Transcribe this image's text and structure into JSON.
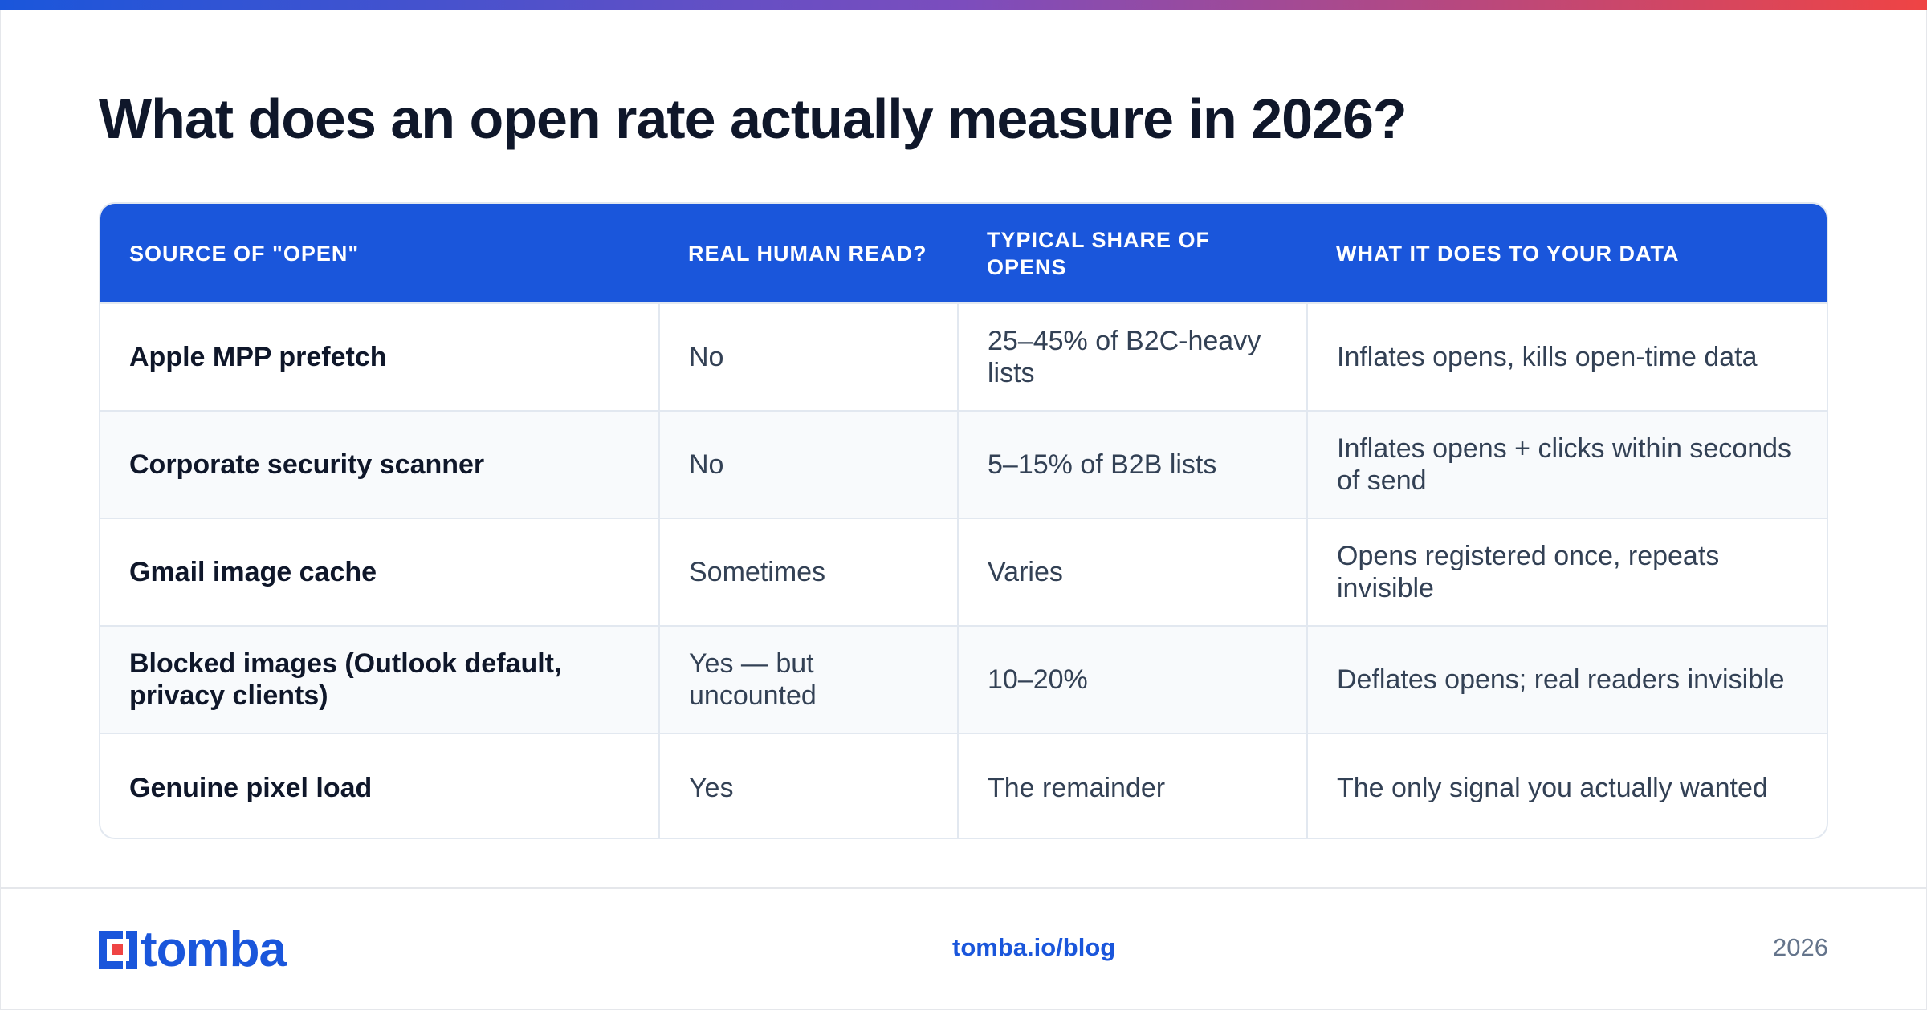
{
  "title": "What does an open rate actually measure in 2026?",
  "table": {
    "headers": [
      "SOURCE OF \"OPEN\"",
      "REAL HUMAN READ?",
      "TYPICAL SHARE OF OPENS",
      "WHAT IT DOES TO YOUR DATA"
    ],
    "rows": [
      [
        "Apple MPP prefetch",
        "No",
        "25–45% of B2C-heavy lists",
        "Inflates opens, kills open-time data"
      ],
      [
        "Corporate security scanner",
        "No",
        "5–15% of B2B lists",
        "Inflates opens + clicks within seconds of send"
      ],
      [
        "Gmail image cache",
        "Sometimes",
        "Varies",
        "Opens registered once, repeats invisible"
      ],
      [
        "Blocked images (Outlook default, privacy clients)",
        "Yes — but uncounted",
        "10–20%",
        "Deflates opens; real readers invisible"
      ],
      [
        "Genuine pixel load",
        "Yes",
        "The remainder",
        "The only signal you actually wanted"
      ]
    ]
  },
  "footer": {
    "logo_text": "tomba",
    "link": "tomba.io/blog",
    "year": "2026"
  },
  "colors": {
    "accent": "#1a56db",
    "logo_red": "#ef4444",
    "title": "#0f172a",
    "muted": "#64748b"
  }
}
